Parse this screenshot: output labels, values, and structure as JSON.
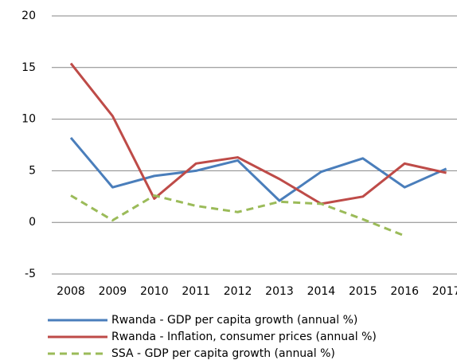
{
  "chart_data": {
    "type": "line",
    "x": [
      "2008",
      "2009",
      "2010",
      "2011",
      "2012",
      "2013",
      "2014",
      "2015",
      "2016",
      "2017"
    ],
    "series": [
      {
        "name": "Rwanda - GDP per capita growth (annual %)",
        "color": "#4a7ebb",
        "values": [
          8.2,
          3.4,
          4.5,
          5.0,
          6.0,
          2.1,
          4.9,
          6.2,
          3.4,
          5.2
        ]
      },
      {
        "name": "Rwanda - Inflation, consumer prices (annual %)",
        "color": "#be4b48",
        "values": [
          15.4,
          10.3,
          2.3,
          5.7,
          6.3,
          4.2,
          1.8,
          2.5,
          5.7,
          4.8
        ]
      },
      {
        "name": "SSA - GDP per capita growth (annual %)",
        "color": "#9bbb59",
        "dashed": true,
        "values": [
          2.6,
          0.2,
          2.6,
          1.6,
          1.0,
          2.0,
          1.8,
          0.3,
          -1.3,
          null
        ]
      }
    ],
    "ylim": [
      -5,
      20
    ],
    "yticks": [
      -5,
      0,
      5,
      10,
      15,
      20
    ],
    "grid": true,
    "legend": "bottom"
  }
}
